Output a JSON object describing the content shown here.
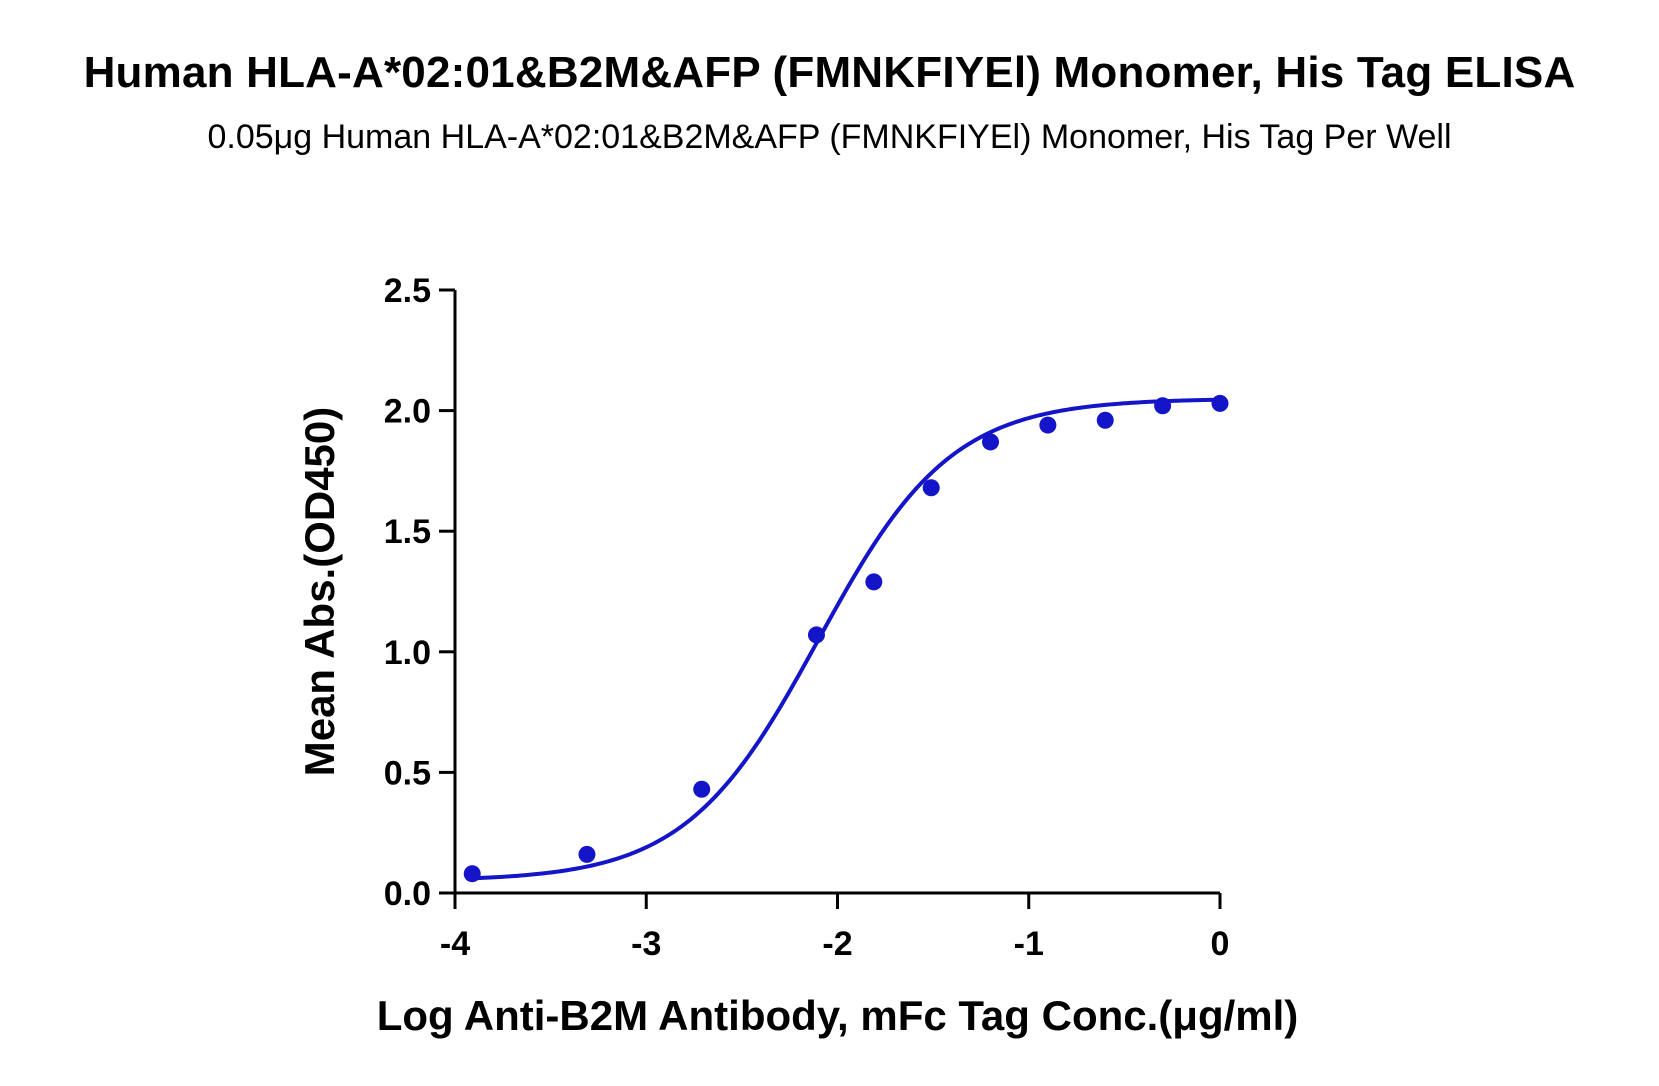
{
  "chart_data": {
    "type": "scatter",
    "title": "Human HLA-A*02:01&B2M&AFP (FMNKFIYEl) Monomer, His Tag ELISA",
    "subtitle": "0.05μg Human HLA-A*02:01&B2M&AFP (FMNKFIYEl) Monomer, His Tag Per Well",
    "xlabel": "Log Anti-B2M Antibody, mFc Tag Conc.(μg/ml)",
    "ylabel": "Mean Abs.(OD450)",
    "xlim": [
      -4,
      0
    ],
    "ylim": [
      0,
      2.5
    ],
    "x_ticks": [
      "-4",
      "-3",
      "-2",
      "-1",
      "0"
    ],
    "y_ticks": [
      "0.0",
      "0.5",
      "1.0",
      "1.5",
      "2.0",
      "2.5"
    ],
    "grid": false,
    "series": [
      {
        "points": [
          {
            "x": -3.91,
            "y": 0.08
          },
          {
            "x": -3.31,
            "y": 0.16
          },
          {
            "x": -2.71,
            "y": 0.43
          },
          {
            "x": -2.11,
            "y": 1.07
          },
          {
            "x": -1.81,
            "y": 1.29
          },
          {
            "x": -1.51,
            "y": 1.68
          },
          {
            "x": -1.2,
            "y": 1.87
          },
          {
            "x": -0.9,
            "y": 1.94
          },
          {
            "x": -0.6,
            "y": 1.96
          },
          {
            "x": -0.3,
            "y": 2.02
          },
          {
            "x": 0.0,
            "y": 2.03
          }
        ],
        "fit": {
          "bottom": 0.05,
          "top": 2.05,
          "log_ec50": -2.1,
          "hill_slope": 1.25
        }
      }
    ],
    "colors": {
      "series": "#1414c8",
      "axis": "#000000"
    }
  }
}
